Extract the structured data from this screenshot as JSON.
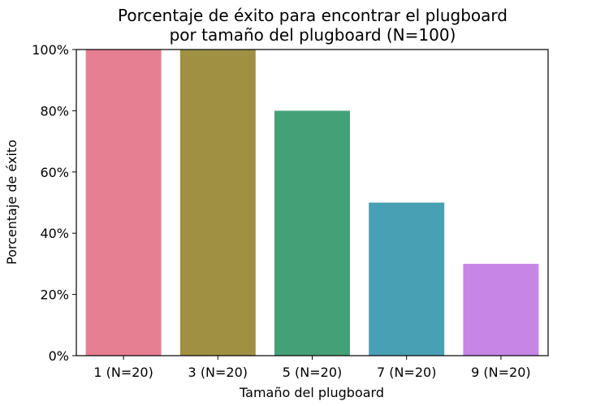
{
  "chart_data": {
    "type": "bar",
    "title_lines": [
      "Porcentaje de éxito para encontrar el plugboard",
      "por tamaño del plugboard (N=100)"
    ],
    "xlabel": "Tamaño del plugboard",
    "ylabel": "Porcentaje de éxito",
    "categories": [
      "1 (N=20)",
      "3 (N=20)",
      "5 (N=20)",
      "7 (N=20)",
      "9 (N=20)"
    ],
    "values": [
      100,
      100,
      80,
      50,
      30
    ],
    "colors": [
      "#e77f93",
      "#9f9141",
      "#43a077",
      "#48a0b5",
      "#c786e6"
    ],
    "ylim": [
      0,
      100
    ],
    "yticks": [
      0,
      20,
      40,
      60,
      80,
      100
    ],
    "ytick_labels": [
      "0%",
      "20%",
      "40%",
      "60%",
      "80%",
      "100%"
    ],
    "grid": false,
    "legend": "none"
  }
}
